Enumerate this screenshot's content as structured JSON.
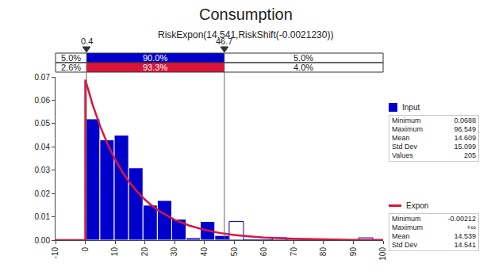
{
  "chart_data": {
    "type": "histogram",
    "title": "Consumption",
    "subtitle": "RiskExpon(14.541,RiskShift(-0.0021230))",
    "xlim": [
      -10,
      100
    ],
    "xticks": [
      -10,
      0,
      10,
      20,
      30,
      40,
      50,
      60,
      70,
      80,
      90,
      100
    ],
    "ylim": [
      0,
      0.07
    ],
    "yticks": [
      {
        "value": 0,
        "label": "0.00"
      },
      {
        "value": 0.01,
        "label": "0.01"
      },
      {
        "value": 0.02,
        "label": "0.02"
      },
      {
        "value": 0.03,
        "label": "0.03"
      },
      {
        "value": 0.04,
        "label": "0.04"
      },
      {
        "value": 0.05,
        "label": "0.05"
      },
      {
        "value": 0.06,
        "label": "0.06"
      },
      {
        "value": 0.07,
        "label": "0.07"
      }
    ],
    "grid": false,
    "legend": "right",
    "delimiters": [
      0.4,
      46.7
    ],
    "series": [
      {
        "name": "Input",
        "type": "histogram",
        "color": "#0000cd",
        "bins": [
          0.0688,
          4.893,
          9.717,
          14.541,
          19.365,
          24.189,
          29.013,
          33.837,
          38.661,
          43.485,
          48.309,
          53.133,
          57.957,
          62.781,
          67.605,
          72.429,
          77.253,
          82.077,
          86.901,
          91.725,
          96.549
        ],
        "values": [
          0.052,
          0.043,
          0.045,
          0.031,
          0.015,
          0.017,
          0.009,
          0.001,
          0.008,
          0.002,
          0.008,
          0,
          0,
          0.001,
          0.0005,
          0,
          0,
          0,
          0,
          0.001
        ],
        "band": {
          "values": [
            5,
            90,
            5
          ],
          "value_labels": [
            "5.0%",
            "90.0%",
            "5.0%"
          ]
        },
        "stats": [
          {
            "label": "Minimum",
            "value": 0.0688
          },
          {
            "label": "Maximum",
            "value": 96.549
          },
          {
            "label": "Mean",
            "value": 14.609
          },
          {
            "label": "Std Dev",
            "value": 15.099
          },
          {
            "label": "Values",
            "value": 205
          }
        ]
      },
      {
        "name": "Expon",
        "type": "line",
        "color": "#dc143c",
        "x": [
          -10,
          -0.00212,
          -0.00212,
          2.5,
          5,
          7.5,
          10,
          12.5,
          15,
          17.5,
          20,
          22.5,
          25,
          27.5,
          30,
          35,
          40,
          45,
          50,
          55,
          60,
          70,
          80,
          90,
          100
        ],
        "values": [
          0,
          0,
          0.0688,
          0.0579,
          0.0488,
          0.0411,
          0.0346,
          0.0291,
          0.0245,
          0.0207,
          0.0174,
          0.0146,
          0.0123,
          0.0104,
          0.0087,
          0.0062,
          0.0044,
          0.0031,
          0.0022,
          0.0016,
          0.0011,
          0.0006,
          0.0003,
          0.0001,
          0.0001
        ],
        "band": {
          "values": [
            2.6,
            93.3,
            4
          ],
          "value_labels": [
            "2.6%",
            "93.3%",
            "4.0%"
          ]
        },
        "stats": [
          {
            "label": "Minimum",
            "value": -0.00212
          },
          {
            "label": "Maximum",
            "value": "+∞"
          },
          {
            "label": "Mean",
            "value": 14.539
          },
          {
            "label": "Std Dev",
            "value": 14.541
          }
        ]
      }
    ]
  }
}
